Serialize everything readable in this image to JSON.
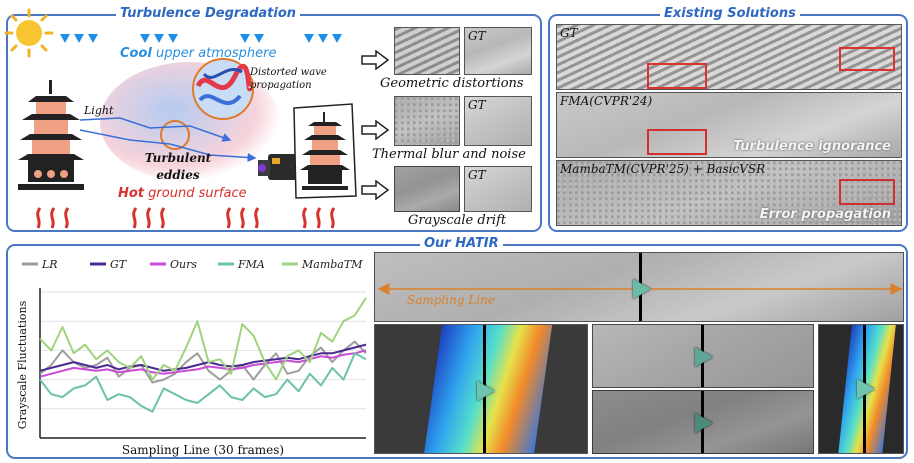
{
  "top_left_panel": {
    "title": "Turbulence Degradation",
    "cool_label_bold": "Cool",
    "cool_label_rest": " upper atmosphere",
    "hot_label_bold": "Hot",
    "hot_label_rest": " ground surface",
    "light_label": "Light",
    "eddies_label": "Turbulent eddies",
    "wave_label": "Distorted wave propagation",
    "effects": [
      {
        "caption": "Geometric distortions",
        "gt_label": "GT"
      },
      {
        "caption": "Thermal blur and noise",
        "gt_label": "GT"
      },
      {
        "caption": "Grayscale drift",
        "gt_label": "GT"
      }
    ]
  },
  "top_right_panel": {
    "title": "Existing Solutions",
    "rows": [
      {
        "label": "GT",
        "note": ""
      },
      {
        "label": "FMA(CVPR'24)",
        "note": "Turbulence ignorance"
      },
      {
        "label": "MambaTM(CVPR'25) + BasicVSR",
        "note": "Error propagation"
      }
    ]
  },
  "bottom_panel": {
    "title": "Our HATIR",
    "sampling_line_label": "Sampling Line",
    "colors": {
      "accent": "#4a78c2",
      "sampling": "#e8872d"
    }
  },
  "chart_data": {
    "type": "line",
    "title": "",
    "xlabel": "Sampling Line (30 frames)",
    "ylabel": "Grayscale Fluctuations",
    "legend_position": "top",
    "x": [
      1,
      2,
      3,
      4,
      5,
      6,
      7,
      8,
      9,
      10,
      11,
      12,
      13,
      14,
      15,
      16,
      17,
      18,
      19,
      20,
      21,
      22,
      23,
      24,
      25,
      26,
      27,
      28,
      29,
      30
    ],
    "ylim": [
      0,
      100
    ],
    "series": [
      {
        "name": "LR",
        "color": "#9e9e9e",
        "values": [
          44,
          50,
          60,
          52,
          48,
          50,
          55,
          42,
          48,
          50,
          38,
          40,
          44,
          52,
          58,
          46,
          40,
          46,
          50,
          40,
          50,
          58,
          44,
          46,
          56,
          62,
          52,
          60,
          66,
          58
        ]
      },
      {
        "name": "GT",
        "color": "#4b2a8f",
        "values": [
          46,
          48,
          50,
          52,
          50,
          48,
          50,
          47,
          49,
          50,
          48,
          46,
          47,
          48,
          50,
          52,
          50,
          49,
          50,
          52,
          53,
          54,
          55,
          54,
          56,
          58,
          58,
          60,
          62,
          64
        ]
      },
      {
        "name": "Ours",
        "color": "#c94bd6",
        "values": [
          42,
          44,
          46,
          48,
          47,
          46,
          47,
          45,
          46,
          47,
          45,
          44,
          45,
          46,
          47,
          49,
          48,
          47,
          48,
          50,
          51,
          52,
          53,
          52,
          54,
          56,
          55,
          57,
          58,
          60
        ]
      },
      {
        "name": "FMA",
        "color": "#6bc2a6",
        "values": [
          40,
          30,
          28,
          34,
          36,
          42,
          26,
          30,
          28,
          22,
          18,
          34,
          30,
          26,
          24,
          30,
          36,
          28,
          26,
          34,
          28,
          30,
          40,
          32,
          44,
          36,
          48,
          40,
          58,
          54
        ]
      },
      {
        "name": "MambaTM",
        "color": "#9fd37e",
        "values": [
          68,
          60,
          76,
          58,
          64,
          54,
          60,
          52,
          48,
          56,
          40,
          50,
          46,
          62,
          80,
          52,
          54,
          44,
          78,
          70,
          52,
          40,
          56,
          60,
          52,
          72,
          66,
          80,
          84,
          96
        ]
      }
    ]
  }
}
